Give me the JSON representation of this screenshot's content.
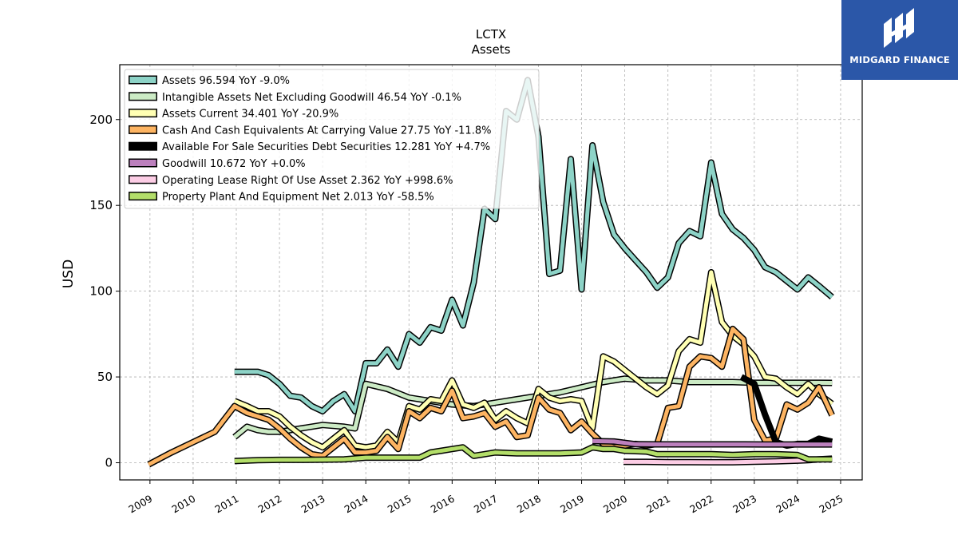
{
  "brand": {
    "name": "MIDGARD FINANCE",
    "bg_color": "#2b57a8"
  },
  "chart_data": {
    "type": "line",
    "title": "LCTX",
    "subtitle": "Assets",
    "ylabel": "USD",
    "xlabel": "",
    "xlim": [
      2008.3,
      2025.5
    ],
    "ylim": [
      -10,
      232
    ],
    "yticks": [
      0,
      50,
      100,
      150,
      200
    ],
    "xticks": [
      "2009",
      "2010",
      "2011",
      "2012",
      "2013",
      "2014",
      "2015",
      "2016",
      "2017",
      "2018",
      "2019",
      "2020",
      "2021",
      "2022",
      "2023",
      "2024",
      "2025"
    ],
    "grid": true,
    "legend_position": "top-left",
    "series": [
      {
        "name": "Assets",
        "legend": "Assets  96.594 YoY -9.0%",
        "color": "#8dd3c7",
        "x": [
          2010.96,
          2011.25,
          2011.5,
          2011.75,
          2012.0,
          2012.25,
          2012.5,
          2012.75,
          2013.0,
          2013.25,
          2013.5,
          2013.75,
          2014.0,
          2014.25,
          2014.5,
          2014.75,
          2015.0,
          2015.25,
          2015.5,
          2015.75,
          2016.0,
          2016.25,
          2016.5,
          2016.75,
          2017.0,
          2017.25,
          2017.5,
          2017.75,
          2018.0,
          2018.25,
          2018.5,
          2018.75,
          2019.0,
          2019.25,
          2019.5,
          2019.75,
          2020.0,
          2020.25,
          2020.5,
          2020.75,
          2021.0,
          2021.25,
          2021.5,
          2021.75,
          2022.0,
          2022.25,
          2022.5,
          2022.75,
          2023.0,
          2023.25,
          2023.5,
          2023.75,
          2024.0,
          2024.25,
          2024.5,
          2024.8
        ],
        "y": [
          53,
          53,
          53,
          51,
          46,
          39,
          38,
          33,
          30,
          36,
          40,
          30,
          58,
          58,
          66,
          56,
          75,
          70,
          79,
          77,
          95,
          80,
          105,
          148,
          142,
          205,
          200,
          223,
          190,
          110,
          112,
          177,
          101,
          185,
          152,
          133,
          125,
          118,
          111,
          102,
          108,
          128,
          135,
          132,
          175,
          145,
          136,
          131,
          124,
          114,
          111,
          106,
          101,
          108,
          103,
          96.594
        ]
      },
      {
        "name": "Intangible Assets Net Excluding Goodwill",
        "legend": "Intangible Assets Net Excluding Goodwill  46.54 YoY -0.1%",
        "color": "#ccebc5",
        "x": [
          2010.96,
          2011.25,
          2011.5,
          2011.75,
          2012.0,
          2012.5,
          2013.0,
          2013.5,
          2013.75,
          2014.0,
          2014.5,
          2015.0,
          2015.5,
          2016.0,
          2016.5,
          2017.0,
          2017.5,
          2018.0,
          2018.5,
          2019.0,
          2019.5,
          2020.0,
          2020.5,
          2021.0,
          2021.5,
          2022.0,
          2022.5,
          2023.0,
          2023.5,
          2024.0,
          2024.5,
          2024.8
        ],
        "y": [
          15,
          21,
          19,
          18,
          18,
          20,
          22,
          21,
          20,
          46,
          43,
          38,
          36,
          34,
          33,
          35,
          37,
          39,
          41,
          44,
          47,
          49,
          48,
          48,
          47,
          47,
          47,
          46.6,
          46.6,
          46.6,
          46.6,
          46.54
        ]
      },
      {
        "name": "Assets Current",
        "legend": "Assets Current  34.401 YoY -20.9%",
        "color": "#ffffb3",
        "x": [
          2010.96,
          2011.25,
          2011.5,
          2011.75,
          2012.0,
          2012.25,
          2012.5,
          2012.75,
          2013.0,
          2013.25,
          2013.5,
          2013.75,
          2014.0,
          2014.25,
          2014.5,
          2014.75,
          2015.0,
          2015.25,
          2015.5,
          2015.75,
          2016.0,
          2016.25,
          2016.5,
          2016.75,
          2017.0,
          2017.25,
          2017.5,
          2017.75,
          2018.0,
          2018.25,
          2018.5,
          2018.75,
          2019.0,
          2019.25,
          2019.5,
          2019.75,
          2020.0,
          2020.25,
          2020.5,
          2020.75,
          2021.0,
          2021.25,
          2021.5,
          2021.75,
          2022.0,
          2022.25,
          2022.5,
          2022.75,
          2023.0,
          2023.25,
          2023.5,
          2023.75,
          2024.0,
          2024.25,
          2024.5,
          2024.8
        ],
        "y": [
          36,
          33,
          30,
          30,
          27,
          21,
          16,
          12,
          9,
          14,
          19,
          10,
          9,
          10,
          18,
          12,
          33,
          31,
          37,
          36,
          48,
          34,
          32,
          35,
          25,
          30,
          26,
          23,
          43,
          38,
          36,
          37,
          36,
          20,
          62,
          59,
          54,
          49,
          44,
          40,
          45,
          65,
          72,
          70,
          111,
          82,
          74,
          69,
          62,
          50,
          49,
          44,
          40,
          46,
          40,
          34.401
        ]
      },
      {
        "name": "Cash And Cash Equivalents At Carrying Value",
        "legend": "Cash And Cash Equivalents At Carrying Value  27.75 YoY -11.8%",
        "color": "#fdb462",
        "x": [
          2008.97,
          2009.5,
          2010.0,
          2010.5,
          2010.96,
          2011.25,
          2011.5,
          2011.75,
          2012.0,
          2012.25,
          2012.5,
          2012.75,
          2013.0,
          2013.25,
          2013.5,
          2013.75,
          2014.0,
          2014.25,
          2014.5,
          2014.75,
          2015.0,
          2015.25,
          2015.5,
          2015.75,
          2016.0,
          2016.25,
          2016.5,
          2016.75,
          2017.0,
          2017.25,
          2017.5,
          2017.75,
          2018.0,
          2018.25,
          2018.5,
          2018.75,
          2019.0,
          2019.25,
          2019.5,
          2019.75,
          2020.0,
          2020.25,
          2020.5,
          2020.75,
          2021.0,
          2021.25,
          2021.5,
          2021.75,
          2022.0,
          2022.25,
          2022.5,
          2022.75,
          2023.0,
          2023.25,
          2023.5,
          2023.75,
          2024.0,
          2024.25,
          2024.5,
          2024.8
        ],
        "y": [
          -1,
          6,
          12,
          18,
          33,
          29,
          27,
          25,
          20,
          14,
          9,
          5,
          4,
          9,
          14,
          6,
          6,
          7,
          15,
          8,
          30,
          26,
          32,
          30,
          42,
          26,
          27,
          29,
          21,
          24,
          15,
          16,
          38,
          31,
          29,
          19,
          24,
          17,
          11,
          9,
          10,
          11,
          10,
          11,
          32,
          33,
          56,
          62,
          61,
          56,
          78,
          72,
          25,
          13,
          14,
          34,
          31,
          35,
          44,
          27.75
        ]
      },
      {
        "name": "Available For Sale Securities Debt Securities",
        "legend": "Available For Sale Securities Debt Securities  12.281 YoY +4.7%",
        "color": "#000000",
        "x": [
          2022.7,
          2023.0,
          2023.25,
          2023.5,
          2023.75,
          2024.0,
          2024.25,
          2024.5,
          2024.8
        ],
        "y": [
          50,
          46,
          28,
          12,
          10,
          11,
          11,
          14,
          12.281
        ]
      },
      {
        "name": "Goodwill",
        "legend": "Goodwill  10.672 YoY +0.0%",
        "color": "#bc80bd",
        "x": [
          2019.25,
          2019.75,
          2020.25,
          2020.75,
          2021.25,
          2021.75,
          2022.25,
          2022.75,
          2023.25,
          2023.75,
          2024.25,
          2024.8
        ],
        "y": [
          12.6,
          12.4,
          10.8,
          10.7,
          10.7,
          10.7,
          10.7,
          10.7,
          10.67,
          10.67,
          10.67,
          10.672
        ]
      },
      {
        "name": "Operating Lease Right Of Use Asset",
        "legend": "Operating Lease Right Of Use Asset  2.362 YoY +998.6%",
        "color": "#fccde5",
        "x": [
          2019.97,
          2020.5,
          2021.0,
          2021.5,
          2022.0,
          2022.5,
          2023.0,
          2023.5,
          2024.0,
          2024.25,
          2024.5,
          2024.8
        ],
        "y": [
          0.5,
          0.5,
          0.4,
          0.4,
          0.3,
          0.3,
          0.6,
          0.8,
          1.2,
          1.5,
          2.0,
          2.362
        ]
      },
      {
        "name": "Property Plant And Equipment Net",
        "legend": "Property Plant And Equipment Net  2.013 YoY -58.5%",
        "color": "#b3de69",
        "x": [
          2010.96,
          2011.5,
          2012.0,
          2012.5,
          2013.0,
          2013.5,
          2014.0,
          2014.5,
          2015.0,
          2015.25,
          2015.5,
          2015.75,
          2016.0,
          2016.25,
          2016.5,
          2016.75,
          2017.0,
          2017.5,
          2018.0,
          2018.5,
          2019.0,
          2019.25,
          2019.5,
          2019.75,
          2020.0,
          2020.5,
          2020.75,
          2021.0,
          2021.5,
          2022.0,
          2022.5,
          2023.0,
          2023.5,
          2024.0,
          2024.25,
          2024.5,
          2024.8
        ],
        "y": [
          1,
          1.5,
          1.7,
          1.7,
          1.8,
          2,
          3,
          3,
          3,
          3,
          6,
          7,
          8,
          9,
          4,
          5,
          6,
          5.5,
          5.5,
          5.5,
          6,
          9,
          8,
          8,
          7,
          6.5,
          5,
          5,
          5,
          5,
          4.5,
          5,
          5,
          4.5,
          2,
          2,
          2.013
        ]
      }
    ]
  }
}
